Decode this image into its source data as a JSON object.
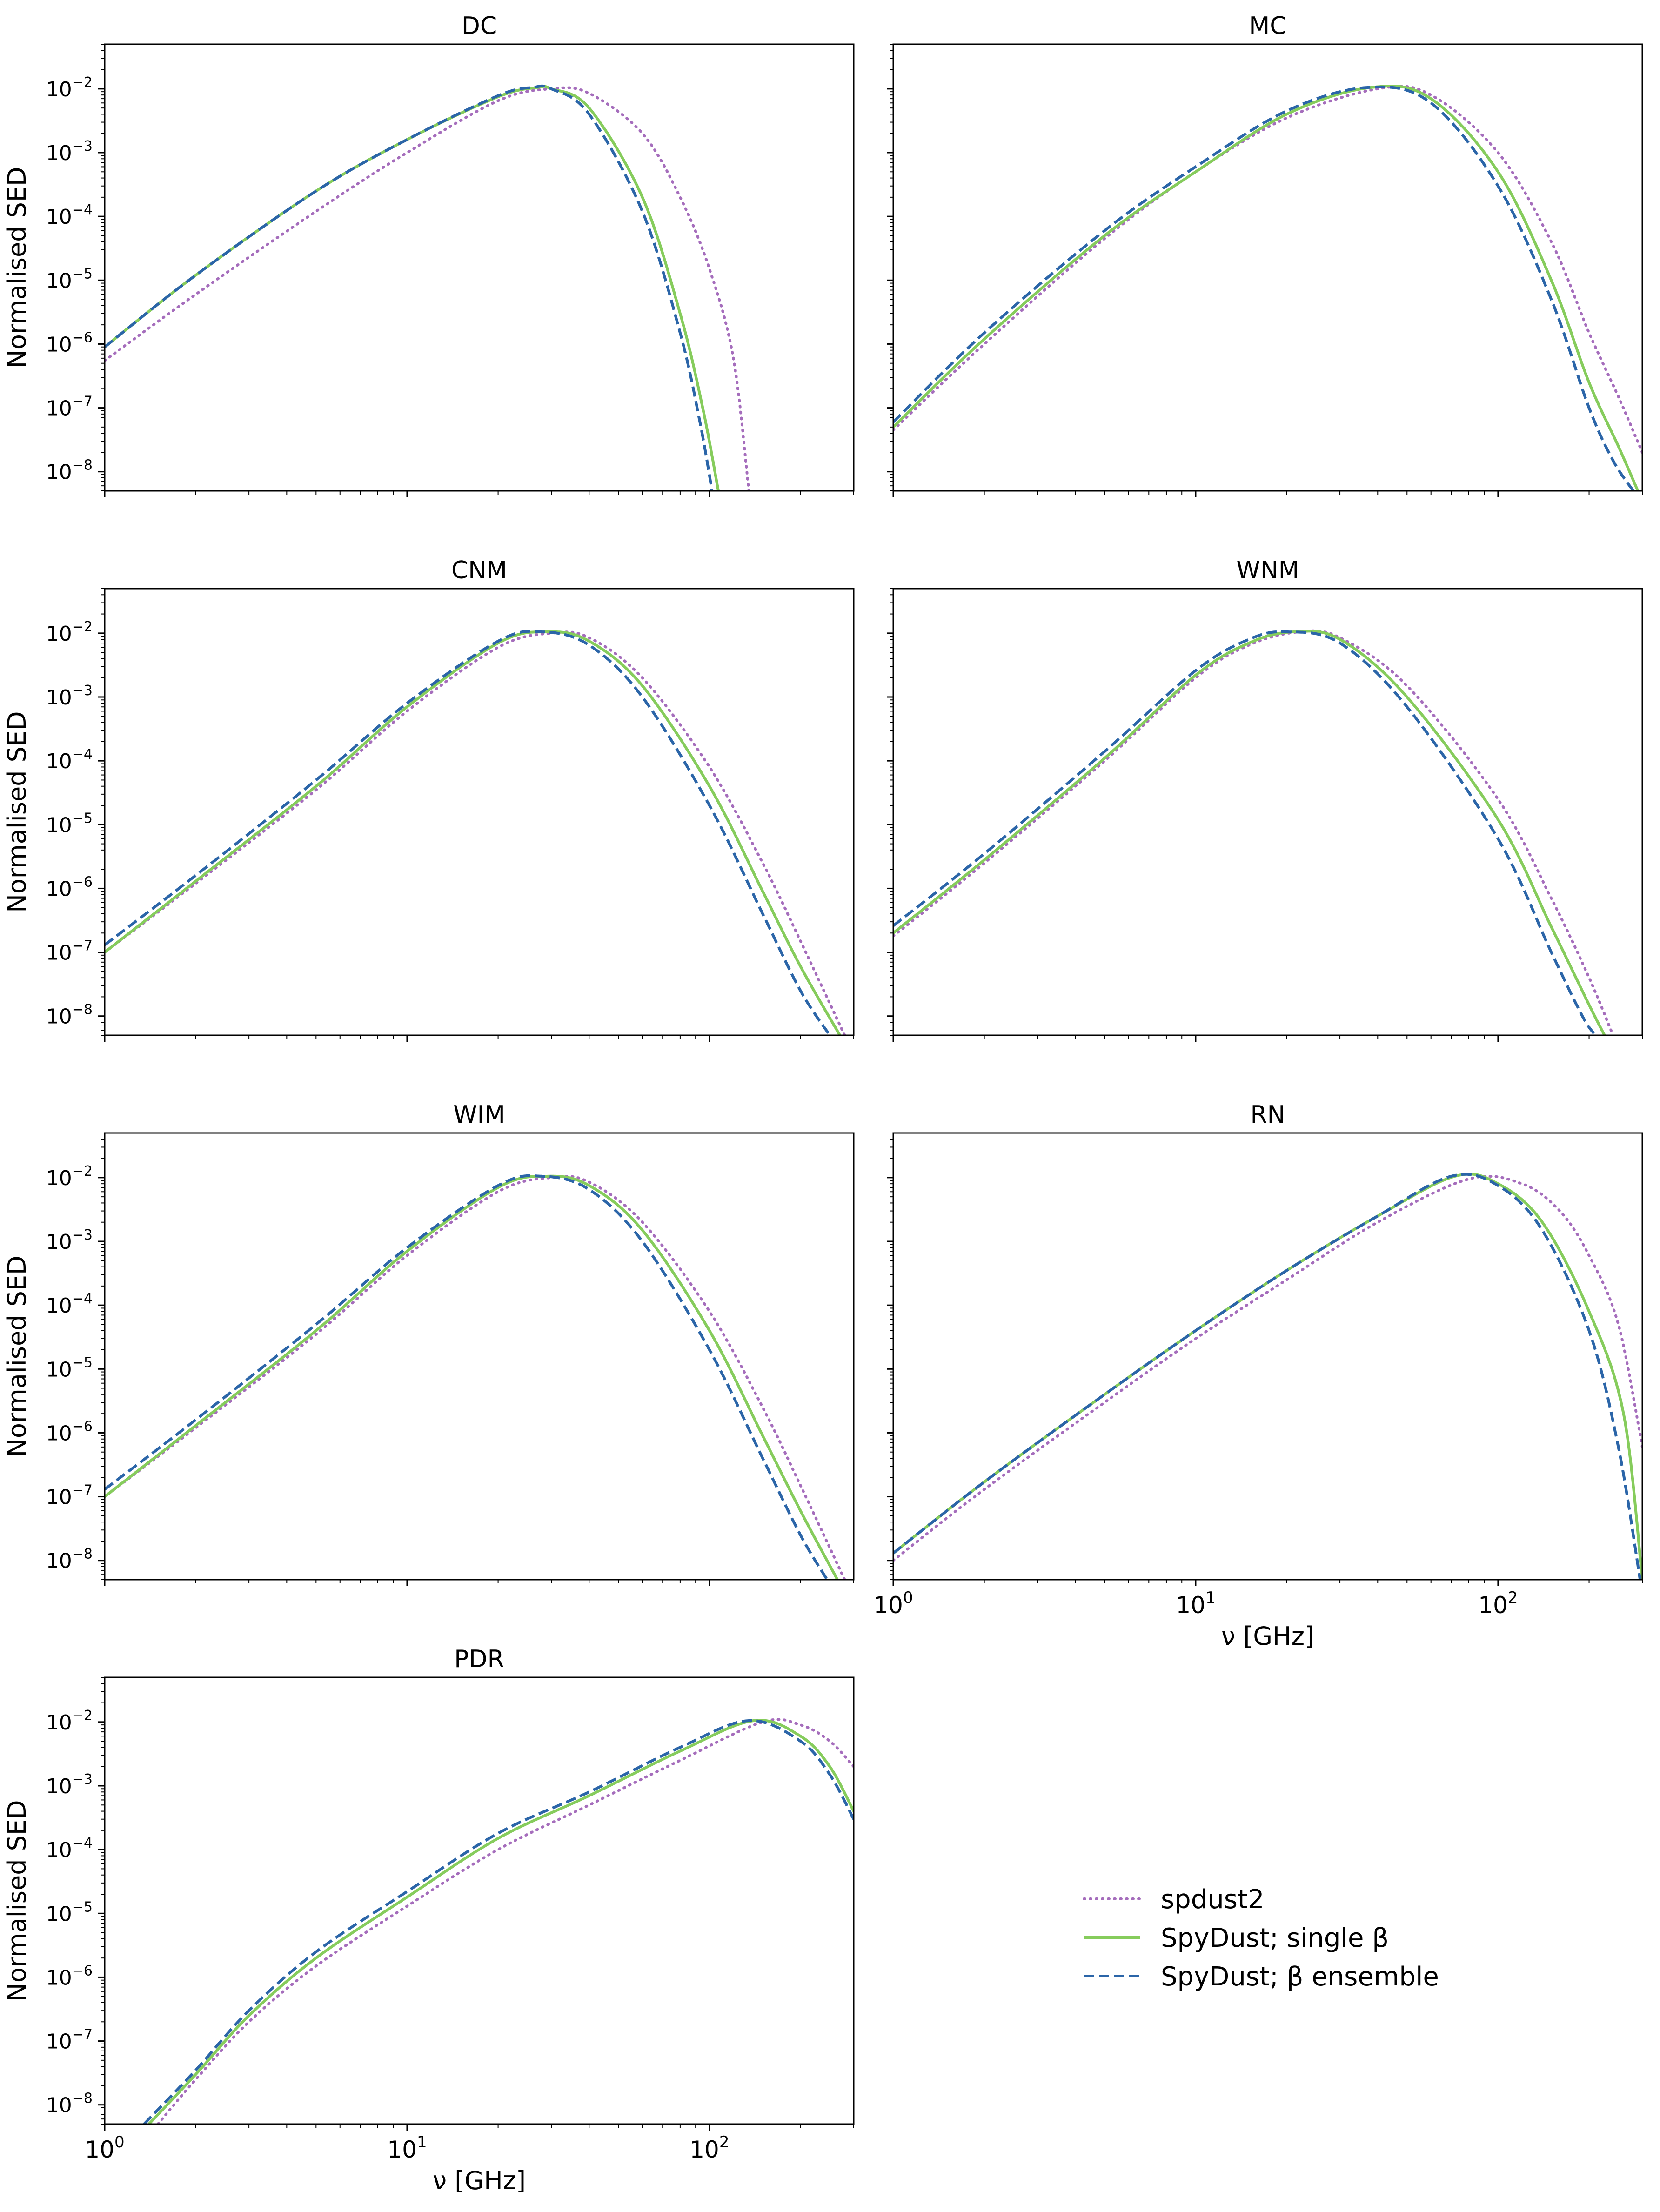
{
  "legend": {
    "placement": "bottom-right (empty grid cell)",
    "entries": [
      {
        "label": "spdust2",
        "color": "#a56dbc",
        "style": "dotted"
      },
      {
        "label": "SpyDust; single β",
        "color": "#86cc5c",
        "style": "solid"
      },
      {
        "label": "SpyDust; β ensemble",
        "color": "#2b65a8",
        "style": "dashed"
      }
    ]
  },
  "chart_data": [
    {
      "type": "line",
      "title": "DC",
      "xscale": "log",
      "yscale": "log",
      "xlim": [
        1,
        300
      ],
      "ylim": [
        5e-09,
        0.05
      ],
      "ylabel": "Normalised SED",
      "xlabel": "",
      "show_xticklabels": false,
      "yticks": [
        {
          "base": "10",
          "exp": "-2"
        },
        {
          "base": "10",
          "exp": "-3"
        },
        {
          "base": "10",
          "exp": "-4"
        },
        {
          "base": "10",
          "exp": "-5"
        },
        {
          "base": "10",
          "exp": "-6"
        },
        {
          "base": "10",
          "exp": "-7"
        },
        {
          "base": "10",
          "exp": "-8"
        }
      ],
      "series": [
        {
          "name": "spdust2",
          "x": [
            1,
            2,
            5,
            10,
            20,
            30,
            40,
            60,
            80,
            100,
            120,
            135
          ],
          "y": [
            5.5e-07,
            6e-06,
            0.00012,
            0.001,
            0.0065,
            0.01,
            0.0085,
            0.002,
            0.0002,
            1.5e-05,
            6e-07,
            5e-09
          ]
        },
        {
          "name": "SpyDust; single β",
          "x": [
            1,
            2,
            5,
            10,
            20,
            27,
            30,
            40,
            60,
            80,
            95,
            107
          ],
          "y": [
            9e-07,
            1.2e-05,
            0.00025,
            0.0016,
            0.0075,
            0.0105,
            0.01,
            0.005,
            0.0002,
            3e-06,
            1e-07,
            5e-09
          ]
        },
        {
          "name": "SpyDust; β ensemble",
          "x": [
            1,
            2,
            5,
            10,
            20,
            26,
            30,
            40,
            60,
            80,
            93,
            102
          ],
          "y": [
            9e-07,
            1.2e-05,
            0.00025,
            0.0016,
            0.0078,
            0.0105,
            0.01,
            0.004,
            0.00012,
            1.5e-06,
            6e-08,
            5e-09
          ]
        }
      ]
    },
    {
      "type": "line",
      "title": "MC",
      "xscale": "log",
      "yscale": "log",
      "xlim": [
        1,
        300
      ],
      "ylim": [
        5e-09,
        0.05
      ],
      "ylabel": "",
      "xlabel": "",
      "show_xticklabels": false,
      "yticks": [],
      "series": [
        {
          "name": "spdust2",
          "x": [
            1,
            2,
            5,
            10,
            20,
            40,
            60,
            100,
            150,
            200,
            250,
            300
          ],
          "y": [
            4.5e-08,
            1e-06,
            4.5e-05,
            0.0005,
            0.0035,
            0.01,
            0.008,
            0.001,
            4e-05,
            1.5e-06,
            1.5e-07,
            2e-08
          ]
        },
        {
          "name": "SpyDust; single β",
          "x": [
            1,
            2,
            5,
            10,
            20,
            38,
            60,
            100,
            150,
            200,
            250,
            290
          ],
          "y": [
            5e-08,
            1.2e-06,
            5e-05,
            0.0005,
            0.004,
            0.0105,
            0.007,
            0.0005,
            1e-05,
            2.5e-07,
            2.5e-08,
            5e-09
          ]
        },
        {
          "name": "SpyDust; β ensemble",
          "x": [
            1,
            2,
            5,
            10,
            20,
            37,
            60,
            100,
            150,
            200,
            240,
            280
          ],
          "y": [
            6e-08,
            1.5e-06,
            6e-05,
            0.0006,
            0.0045,
            0.0105,
            0.006,
            0.0003,
            5e-06,
            1e-07,
            1.5e-08,
            5e-09
          ]
        }
      ]
    },
    {
      "type": "line",
      "title": "CNM",
      "xscale": "log",
      "yscale": "log",
      "xlim": [
        1,
        300
      ],
      "ylim": [
        5e-09,
        0.05
      ],
      "ylabel": "Normalised SED",
      "xlabel": "",
      "show_xticklabels": false,
      "yticks": [
        {
          "base": "10",
          "exp": "-2"
        },
        {
          "base": "10",
          "exp": "-3"
        },
        {
          "base": "10",
          "exp": "-4"
        },
        {
          "base": "10",
          "exp": "-5"
        },
        {
          "base": "10",
          "exp": "-6"
        },
        {
          "base": "10",
          "exp": "-7"
        },
        {
          "base": "10",
          "exp": "-8"
        }
      ],
      "series": [
        {
          "name": "spdust2",
          "x": [
            1,
            2,
            5,
            10,
            20,
            30,
            40,
            60,
            100,
            150,
            200,
            280
          ],
          "y": [
            1e-07,
            1.2e-06,
            3.5e-05,
            0.0006,
            0.006,
            0.01,
            0.0085,
            0.002,
            8e-05,
            2.5e-06,
            1.5e-07,
            5e-09
          ]
        },
        {
          "name": "SpyDust; single β",
          "x": [
            1,
            2,
            5,
            10,
            20,
            29,
            40,
            60,
            100,
            150,
            200,
            270
          ],
          "y": [
            1e-07,
            1.3e-06,
            4e-05,
            0.0007,
            0.007,
            0.0105,
            0.0075,
            0.0015,
            4e-05,
            9e-07,
            6e-08,
            5e-09
          ]
        },
        {
          "name": "SpyDust; β ensemble",
          "x": [
            1,
            2,
            5,
            10,
            20,
            28,
            40,
            60,
            100,
            150,
            200,
            250
          ],
          "y": [
            1.3e-07,
            1.6e-06,
            5e-05,
            0.0008,
            0.0075,
            0.0105,
            0.0065,
            0.001,
            2e-05,
            4e-07,
            2.5e-08,
            5e-09
          ]
        }
      ]
    },
    {
      "type": "line",
      "title": "WNM",
      "xscale": "log",
      "yscale": "log",
      "xlim": [
        1,
        300
      ],
      "ylim": [
        5e-09,
        0.05
      ],
      "ylabel": "",
      "xlabel": "",
      "show_xticklabels": false,
      "yticks": [],
      "series": [
        {
          "name": "spdust2",
          "x": [
            1,
            2,
            5,
            10,
            15,
            22,
            30,
            50,
            100,
            150,
            200,
            240
          ],
          "y": [
            1.8e-07,
            2.5e-06,
            0.0001,
            0.002,
            0.0065,
            0.0105,
            0.0085,
            0.0015,
            2.5e-05,
            7e-07,
            4e-08,
            5e-09
          ]
        },
        {
          "name": "SpyDust; single β",
          "x": [
            1,
            2,
            5,
            10,
            15,
            21,
            30,
            50,
            100,
            150,
            200,
            225
          ],
          "y": [
            2e-07,
            2.8e-06,
            0.00011,
            0.0022,
            0.007,
            0.0105,
            0.008,
            0.001,
            1.2e-05,
            2.5e-07,
            1.5e-08,
            5e-09
          ]
        },
        {
          "name": "SpyDust; β ensemble",
          "x": [
            1,
            2,
            5,
            10,
            15,
            20,
            30,
            50,
            100,
            150,
            190,
            210
          ],
          "y": [
            2.6e-07,
            3.5e-06,
            0.00014,
            0.0026,
            0.008,
            0.0105,
            0.007,
            0.0007,
            6e-06,
            1e-07,
            1e-08,
            5e-09
          ]
        }
      ]
    },
    {
      "type": "line",
      "title": "WIM",
      "xscale": "log",
      "yscale": "log",
      "xlim": [
        1,
        300
      ],
      "ylim": [
        5e-09,
        0.05
      ],
      "ylabel": "Normalised SED",
      "xlabel": "",
      "show_xticklabels": false,
      "yticks": [
        {
          "base": "10",
          "exp": "-2"
        },
        {
          "base": "10",
          "exp": "-3"
        },
        {
          "base": "10",
          "exp": "-4"
        },
        {
          "base": "10",
          "exp": "-5"
        },
        {
          "base": "10",
          "exp": "-6"
        },
        {
          "base": "10",
          "exp": "-7"
        },
        {
          "base": "10",
          "exp": "-8"
        }
      ],
      "series": [
        {
          "name": "spdust2",
          "x": [
            1,
            2,
            5,
            10,
            20,
            30,
            40,
            60,
            100,
            150,
            200,
            280
          ],
          "y": [
            1e-07,
            1.2e-06,
            3.5e-05,
            0.0006,
            0.006,
            0.01,
            0.0085,
            0.002,
            8e-05,
            2.5e-06,
            1.5e-07,
            5e-09
          ]
        },
        {
          "name": "SpyDust; single β",
          "x": [
            1,
            2,
            5,
            10,
            20,
            29,
            40,
            60,
            100,
            150,
            200,
            265
          ],
          "y": [
            1e-07,
            1.3e-06,
            4e-05,
            0.0007,
            0.007,
            0.0105,
            0.0075,
            0.0015,
            4e-05,
            9e-07,
            6e-08,
            5e-09
          ]
        },
        {
          "name": "SpyDust; β ensemble",
          "x": [
            1,
            2,
            5,
            10,
            20,
            28,
            40,
            60,
            100,
            150,
            200,
            245
          ],
          "y": [
            1.3e-07,
            1.6e-06,
            5e-05,
            0.0008,
            0.0075,
            0.0105,
            0.0065,
            0.001,
            2e-05,
            4e-07,
            2.5e-08,
            5e-09
          ]
        }
      ]
    },
    {
      "type": "line",
      "title": "RN",
      "xscale": "log",
      "yscale": "log",
      "xlim": [
        1,
        300
      ],
      "ylim": [
        5e-09,
        0.05
      ],
      "ylabel": "",
      "xlabel": "ν [GHz]",
      "show_xticklabels": true,
      "xticks": [
        {
          "base": "10",
          "exp": "0",
          "value": 1
        },
        {
          "base": "10",
          "exp": "1",
          "value": 10
        },
        {
          "base": "10",
          "exp": "2",
          "value": 100
        }
      ],
      "yticks": [],
      "series": [
        {
          "name": "spdust2",
          "x": [
            1,
            2,
            5,
            10,
            20,
            40,
            80,
            120,
            160,
            200,
            250,
            300
          ],
          "y": [
            1e-08,
            1.3e-07,
            3e-06,
            3e-05,
            0.00025,
            0.002,
            0.0095,
            0.008,
            0.003,
            0.0006,
            5e-05,
            6e-07
          ]
        },
        {
          "name": "SpyDust; single β",
          "x": [
            1,
            2,
            5,
            10,
            20,
            40,
            72,
            100,
            140,
            200,
            260,
            300
          ],
          "y": [
            1.3e-08,
            1.7e-07,
            4e-06,
            4e-05,
            0.00035,
            0.0025,
            0.0105,
            0.008,
            0.002,
            8e-05,
            2e-06,
            5e-09
          ]
        },
        {
          "name": "SpyDust; β ensemble",
          "x": [
            1,
            2,
            5,
            10,
            20,
            40,
            70,
            100,
            140,
            200,
            250,
            295
          ],
          "y": [
            1.3e-08,
            1.7e-07,
            4e-06,
            4e-05,
            0.00035,
            0.0025,
            0.0105,
            0.0075,
            0.0015,
            4e-05,
            6e-07,
            5e-09
          ]
        }
      ]
    },
    {
      "type": "line",
      "title": "PDR",
      "xscale": "log",
      "yscale": "log",
      "xlim": [
        1,
        300
      ],
      "ylim": [
        5e-09,
        0.05
      ],
      "ylabel": "Normalised SED",
      "xlabel": "ν [GHz]",
      "show_xticklabels": true,
      "xticks": [
        {
          "base": "10",
          "exp": "0",
          "value": 1
        },
        {
          "base": "10",
          "exp": "1",
          "value": 10
        },
        {
          "base": "10",
          "exp": "2",
          "value": 100
        }
      ],
      "yticks": [
        {
          "base": "10",
          "exp": "-2"
        },
        {
          "base": "10",
          "exp": "-3"
        },
        {
          "base": "10",
          "exp": "-4"
        },
        {
          "base": "10",
          "exp": "-5"
        },
        {
          "base": "10",
          "exp": "-6"
        },
        {
          "base": "10",
          "exp": "-7"
        },
        {
          "base": "10",
          "exp": "-8"
        }
      ],
      "series": [
        {
          "name": "spdust2",
          "x": [
            1.5,
            2,
            3,
            5,
            10,
            20,
            40,
            80,
            150,
            200,
            250,
            300
          ],
          "y": [
            5e-09,
            2.5e-08,
            2e-07,
            1.5e-06,
            1.3e-05,
            0.0001,
            0.0005,
            0.0025,
            0.01,
            0.009,
            0.005,
            0.002
          ]
        },
        {
          "name": "SpyDust; single β",
          "x": [
            1.4,
            2,
            3,
            5,
            10,
            20,
            40,
            80,
            140,
            200,
            250,
            300
          ],
          "y": [
            5e-09,
            3e-08,
            2.5e-07,
            2e-06,
            1.8e-05,
            0.00015,
            0.0007,
            0.0035,
            0.0105,
            0.006,
            0.002,
            0.0004
          ]
        },
        {
          "name": "SpyDust; β ensemble",
          "x": [
            1.35,
            2,
            3,
            5,
            10,
            20,
            40,
            80,
            135,
            200,
            250,
            300
          ],
          "y": [
            5e-09,
            3.5e-08,
            3e-07,
            2.5e-06,
            2.2e-05,
            0.00018,
            0.0008,
            0.004,
            0.0105,
            0.005,
            0.0015,
            0.0003
          ]
        }
      ]
    }
  ]
}
